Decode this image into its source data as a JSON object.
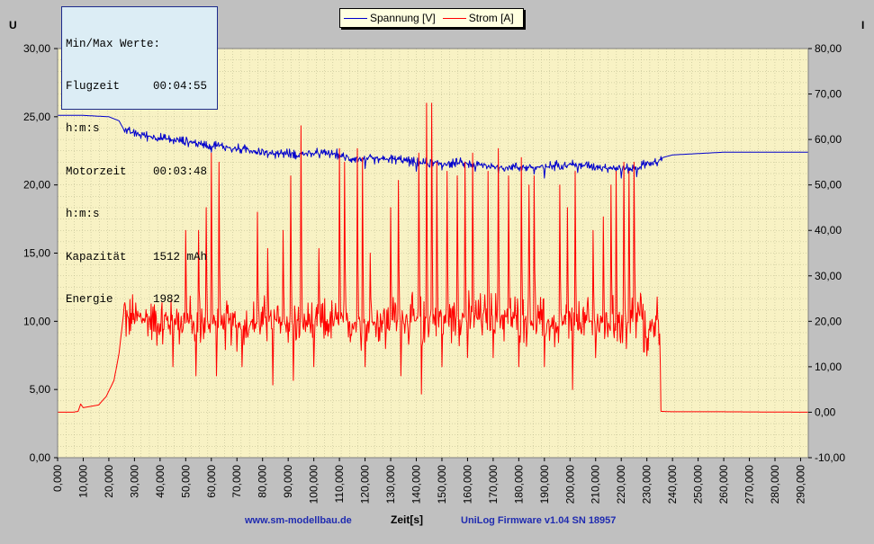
{
  "chart_data": {
    "type": "line",
    "x_label": "Zeit[s]",
    "y_left_label": "U",
    "y_right_label": "I",
    "x_range": [
      0,
      293
    ],
    "x_ticks": [
      "0,000",
      "10,000",
      "20,000",
      "30,000",
      "40,000",
      "50,000",
      "60,000",
      "70,000",
      "80,000",
      "90,000",
      "100,000",
      "110,000",
      "120,000",
      "130,000",
      "140,000",
      "150,000",
      "160,000",
      "170,000",
      "180,000",
      "190,000",
      "200,000",
      "210,000",
      "220,000",
      "230,000",
      "240,000",
      "250,000",
      "260,000",
      "270,000",
      "280,000",
      "290,000"
    ],
    "y_left_range": [
      0,
      30
    ],
    "y_left_ticks": [
      "0,00",
      "5,00",
      "10,00",
      "15,00",
      "20,00",
      "25,00",
      "30,00"
    ],
    "y_right_range": [
      -10,
      80
    ],
    "y_right_ticks": [
      "-10,00",
      "0,00",
      "10,00",
      "20,00",
      "30,00",
      "40,00",
      "50,00",
      "60,00",
      "70,00",
      "80,00"
    ],
    "grid": true,
    "legend_position": "top-center",
    "series": [
      {
        "name": "Spannung [V]",
        "axis": "left",
        "color": "#0000cc",
        "points": [
          [
            0,
            25.1
          ],
          [
            5,
            25.1
          ],
          [
            10,
            25.1
          ],
          [
            15,
            25.05
          ],
          [
            20,
            25.0
          ],
          [
            24,
            24.7
          ],
          [
            26,
            24.0
          ],
          [
            28,
            23.9
          ],
          [
            32,
            23.7
          ],
          [
            38,
            23.5
          ],
          [
            44,
            23.3
          ],
          [
            50,
            23.2
          ],
          [
            56,
            23.0
          ],
          [
            62,
            22.9
          ],
          [
            68,
            22.7
          ],
          [
            74,
            22.6
          ],
          [
            80,
            22.4
          ],
          [
            86,
            22.3
          ],
          [
            90,
            22.3
          ],
          [
            96,
            22.3
          ],
          [
            102,
            22.3
          ],
          [
            108,
            22.3
          ],
          [
            112,
            22.0
          ],
          [
            118,
            21.9
          ],
          [
            124,
            21.9
          ],
          [
            130,
            21.9
          ],
          [
            136,
            21.8
          ],
          [
            140,
            21.6
          ],
          [
            146,
            21.6
          ],
          [
            152,
            21.6
          ],
          [
            158,
            21.6
          ],
          [
            162,
            21.5
          ],
          [
            168,
            21.4
          ],
          [
            174,
            21.3
          ],
          [
            180,
            21.3
          ],
          [
            186,
            21.3
          ],
          [
            190,
            21.3
          ],
          [
            196,
            21.5
          ],
          [
            202,
            21.5
          ],
          [
            208,
            21.4
          ],
          [
            214,
            21.3
          ],
          [
            220,
            21.2
          ],
          [
            226,
            21.2
          ],
          [
            230,
            21.6
          ],
          [
            234,
            21.6
          ],
          [
            236,
            22.0
          ],
          [
            240,
            22.2
          ],
          [
            250,
            22.3
          ],
          [
            260,
            22.4
          ],
          [
            270,
            22.4
          ],
          [
            280,
            22.4
          ],
          [
            293,
            22.4
          ]
        ],
        "noise": [
          [
            26,
            236,
            0.45
          ]
        ],
        "dips": [
          [
            60,
            22.4
          ],
          [
            68,
            22.4
          ],
          [
            82,
            22.0
          ],
          [
            93,
            21.9
          ],
          [
            120,
            21.2
          ],
          [
            140,
            21.0
          ],
          [
            150,
            21.1
          ],
          [
            163,
            21.0
          ],
          [
            172,
            20.8
          ],
          [
            186,
            20.8
          ],
          [
            190,
            20.5
          ],
          [
            203,
            20.9
          ],
          [
            220,
            20.5
          ],
          [
            226,
            20.6
          ]
        ]
      },
      {
        "name": "Strom [A]",
        "axis": "right",
        "color": "#ff0000",
        "points": [
          [
            0,
            0.0
          ],
          [
            6,
            0.0
          ],
          [
            8,
            0.2
          ],
          [
            9,
            1.8
          ],
          [
            10,
            1.0
          ],
          [
            12,
            1.2
          ],
          [
            16,
            1.6
          ],
          [
            19,
            3.5
          ],
          [
            22,
            7.0
          ],
          [
            24,
            13.0
          ],
          [
            25,
            18.0
          ],
          [
            26,
            23.0
          ],
          [
            27,
            20.0
          ],
          [
            30,
            21.0
          ],
          [
            40,
            20.0
          ],
          [
            50,
            20.0
          ],
          [
            60,
            19.5
          ],
          [
            70,
            19.0
          ],
          [
            80,
            20.0
          ],
          [
            90,
            20.0
          ],
          [
            100,
            19.5
          ],
          [
            110,
            20.0
          ],
          [
            120,
            19.5
          ],
          [
            130,
            20.5
          ],
          [
            140,
            20.0
          ],
          [
            150,
            21.0
          ],
          [
            160,
            20.5
          ],
          [
            170,
            21.5
          ],
          [
            180,
            20.5
          ],
          [
            190,
            20.0
          ],
          [
            195,
            18.5
          ],
          [
            200,
            20.0
          ],
          [
            210,
            19.5
          ],
          [
            220,
            20.0
          ],
          [
            226,
            21.0
          ],
          [
            228,
            22.0
          ],
          [
            229,
            16.0
          ],
          [
            232,
            19.0
          ],
          [
            234,
            20.5
          ],
          [
            235,
            20.5
          ],
          [
            235.5,
            0.2
          ],
          [
            240,
            0.1
          ],
          [
            260,
            0.1
          ],
          [
            293,
            0.0
          ]
        ],
        "noise": [
          [
            26,
            235,
            7.0
          ]
        ],
        "spikes": [
          [
            41,
            15
          ],
          [
            50,
            40
          ],
          [
            55,
            40
          ],
          [
            58,
            45
          ],
          [
            60,
            57
          ],
          [
            63,
            55
          ],
          [
            72,
            52
          ],
          [
            78,
            44
          ],
          [
            82,
            36
          ],
          [
            88,
            40
          ],
          [
            91,
            52
          ],
          [
            92,
            62
          ],
          [
            95,
            63
          ],
          [
            102,
            36
          ],
          [
            110,
            58
          ],
          [
            112,
            55
          ],
          [
            117,
            58
          ],
          [
            119,
            56
          ],
          [
            122,
            35
          ],
          [
            130,
            45
          ],
          [
            133,
            51
          ],
          [
            141,
            57
          ],
          [
            144,
            68
          ],
          [
            146,
            68
          ],
          [
            148,
            55
          ],
          [
            152,
            53
          ],
          [
            156,
            52
          ],
          [
            159,
            55
          ],
          [
            162,
            57
          ],
          [
            168,
            53
          ],
          [
            172,
            58
          ],
          [
            176,
            52
          ],
          [
            181,
            56
          ],
          [
            184,
            50
          ],
          [
            186,
            52
          ],
          [
            190,
            57
          ],
          [
            196,
            50
          ],
          [
            199,
            45
          ],
          [
            202,
            53
          ],
          [
            209,
            40
          ],
          [
            213,
            43
          ],
          [
            216,
            50
          ],
          [
            218,
            53
          ],
          [
            221,
            55
          ],
          [
            223,
            53
          ],
          [
            225,
            55
          ]
        ],
        "drops": [
          [
            45,
            10
          ],
          [
            54,
            8
          ],
          [
            62,
            8
          ],
          [
            72,
            10
          ],
          [
            84,
            6
          ],
          [
            92,
            7
          ],
          [
            100,
            10
          ],
          [
            120,
            10
          ],
          [
            128,
            14
          ],
          [
            134,
            8
          ],
          [
            142,
            4
          ],
          [
            150,
            10
          ],
          [
            160,
            12
          ],
          [
            170,
            12
          ],
          [
            180,
            10
          ],
          [
            190,
            10
          ],
          [
            201,
            5
          ],
          [
            210,
            12
          ],
          [
            222,
            14
          ]
        ]
      }
    ]
  },
  "info_box": {
    "title": "Min/Max Werte:",
    "rows": [
      {
        "key": "Flugzeit",
        "value": "00:04:55"
      },
      {
        "key": "h:m:s",
        "value": ""
      },
      {
        "key": "Motorzeit",
        "value": "00:03:48"
      },
      {
        "key": "h:m:s",
        "value": ""
      },
      {
        "key": "Kapazität",
        "value": "1512 mAh"
      },
      {
        "key": "Energie",
        "value": "1982"
      }
    ]
  },
  "legend": {
    "items": [
      {
        "label": "Spannung [V]",
        "color": "#0000cc"
      },
      {
        "label": "Strom [A]",
        "color": "#ff0000"
      }
    ]
  },
  "footer": {
    "left": "www.sm-modellbau.de",
    "right": "UniLog Firmware v1.04 SN 18957"
  },
  "colors": {
    "plot_bg": "#f8f2c4",
    "grid": "#b4b48a",
    "frame_bg": "#c0c0c0"
  }
}
